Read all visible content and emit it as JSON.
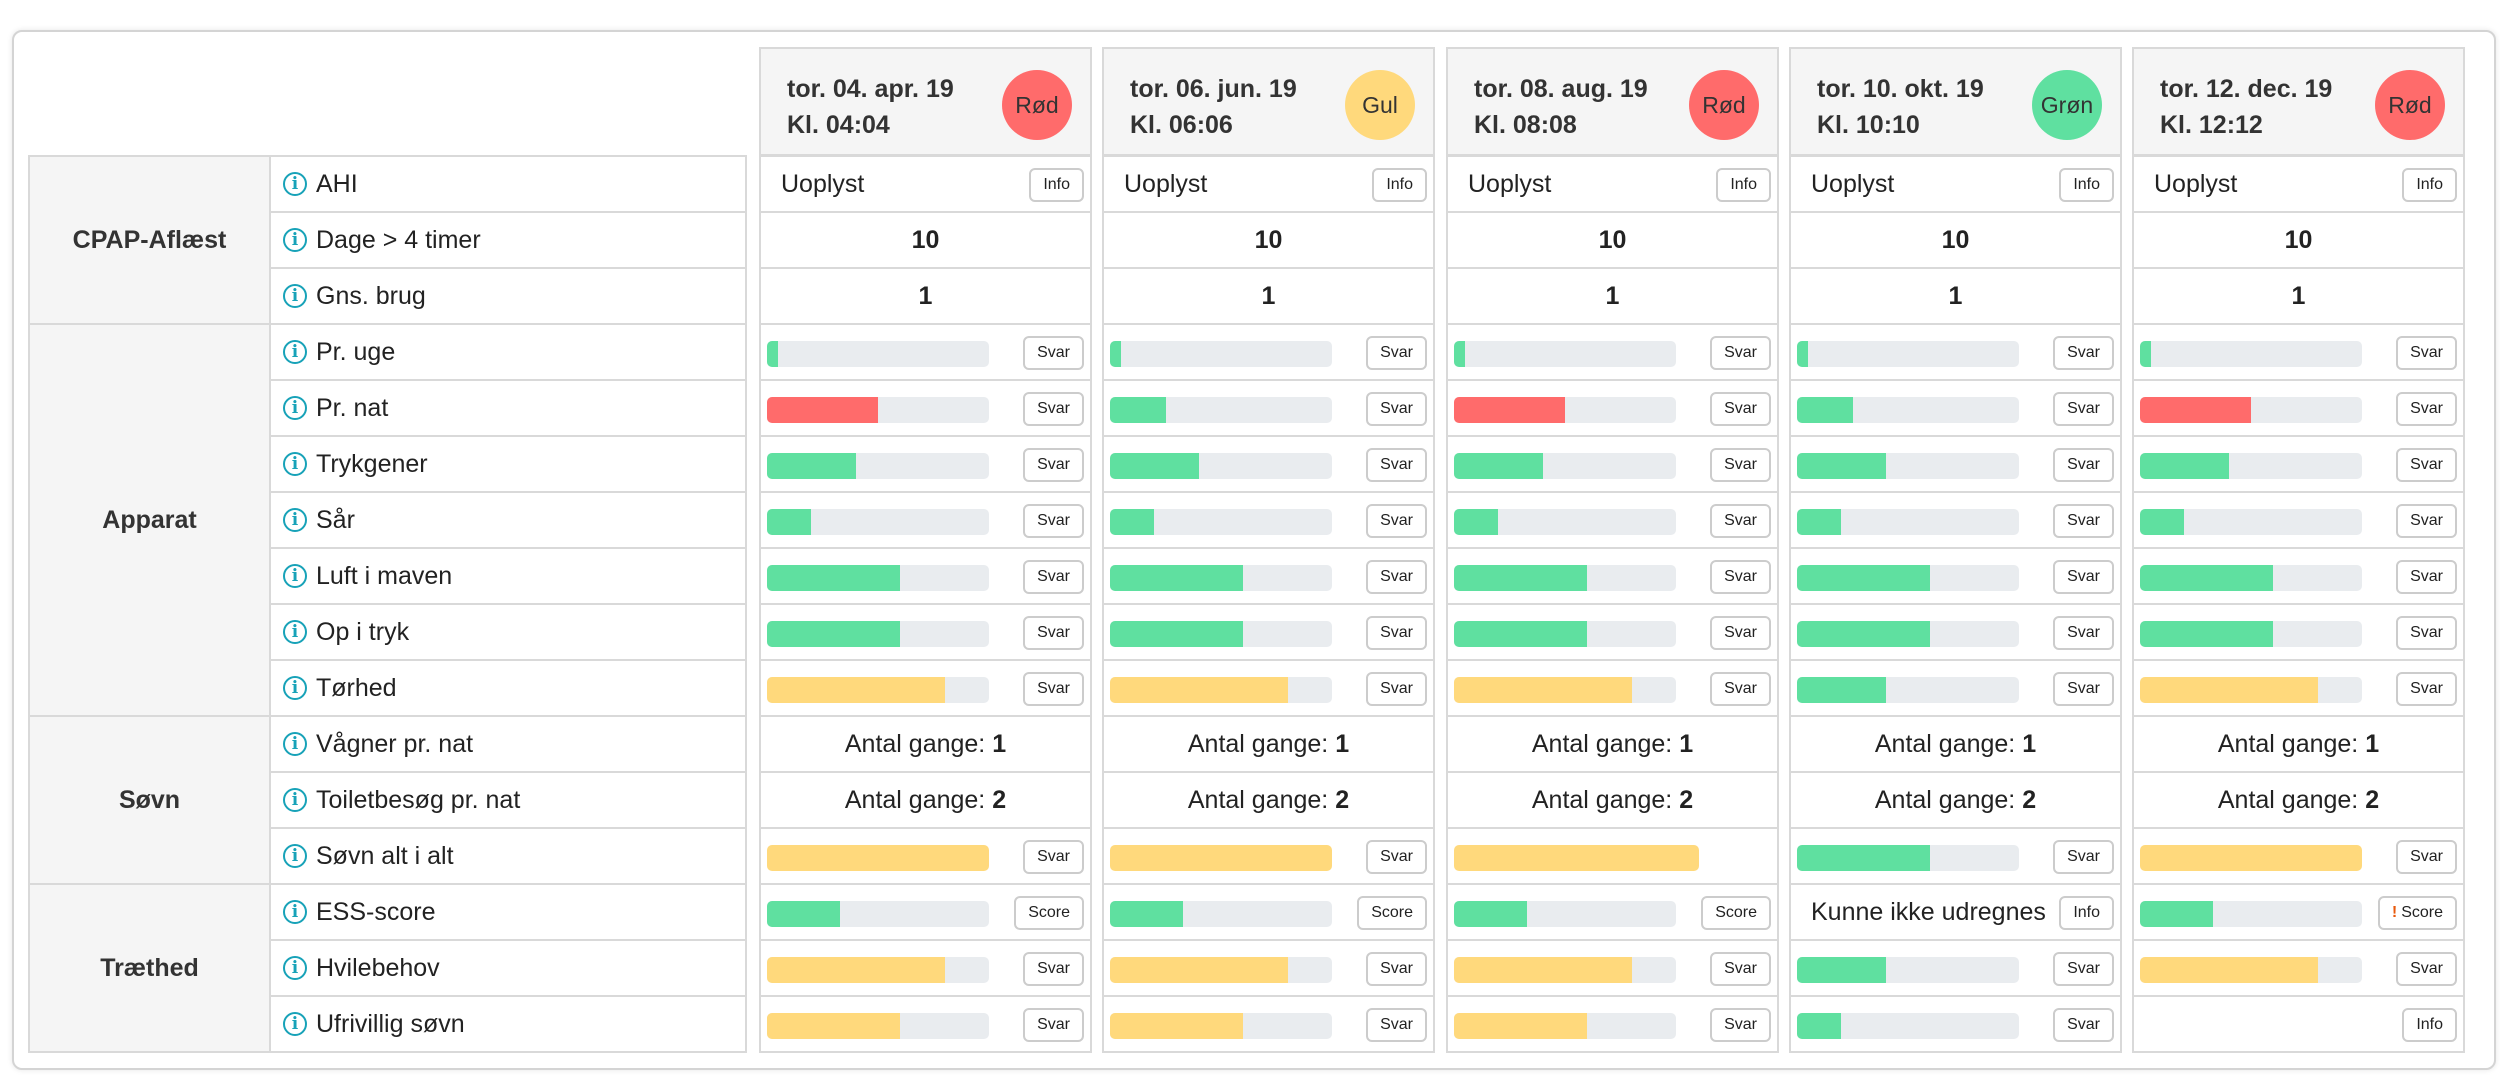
{
  "colors": {
    "red": "#ff6b6b",
    "yellow": "#ffd97c",
    "green": "#5fe0a0",
    "track": "#e9ecef",
    "info_icon": "#17a2b8"
  },
  "sections": [
    {
      "label": "CPAP-Aflæst",
      "rows": [
        "AHI",
        "Dage > 4 timer",
        "Gns. brug"
      ]
    },
    {
      "label": "Apparat",
      "rows": [
        "Pr. uge",
        "Pr. nat",
        "Trykgener",
        "Sår",
        "Luft i maven",
        "Op i tryk",
        "Tørhed"
      ]
    },
    {
      "label": "Søvn",
      "rows": [
        "Vågner pr. nat",
        "Toiletbesøg pr. nat",
        "Søvn alt i alt"
      ]
    },
    {
      "label": "Træthed",
      "rows": [
        "ESS-score",
        "Hvilebehov",
        "Ufrivillig søvn"
      ]
    }
  ],
  "columns": [
    {
      "date": "tor. 04. apr. 19",
      "time": "Kl. 04:04",
      "status": {
        "label": "Rød",
        "color": "red"
      },
      "cells": [
        {
          "type": "text_button",
          "text": "Uoplyst",
          "button": "Info"
        },
        {
          "type": "value",
          "value": "10"
        },
        {
          "type": "value",
          "value": "1"
        },
        {
          "type": "bar",
          "level": 0.05,
          "color": "green",
          "button": "Svar"
        },
        {
          "type": "bar",
          "level": 0.5,
          "color": "red",
          "button": "Svar"
        },
        {
          "type": "bar",
          "level": 0.4,
          "color": "green",
          "button": "Svar"
        },
        {
          "type": "bar",
          "level": 0.2,
          "color": "green",
          "button": "Svar"
        },
        {
          "type": "bar",
          "level": 0.6,
          "color": "green",
          "button": "Svar"
        },
        {
          "type": "bar",
          "level": 0.6,
          "color": "green",
          "button": "Svar"
        },
        {
          "type": "bar",
          "level": 0.8,
          "color": "yellow",
          "button": "Svar"
        },
        {
          "type": "count",
          "prefix": "Antal gange:",
          "value": "1"
        },
        {
          "type": "count",
          "prefix": "Antal gange:",
          "value": "2"
        },
        {
          "type": "bar",
          "level": 1.0,
          "color": "yellow",
          "button": "Svar"
        },
        {
          "type": "bar",
          "level": 0.33,
          "color": "green",
          "button": "Score"
        },
        {
          "type": "bar",
          "level": 0.8,
          "color": "yellow",
          "button": "Svar"
        },
        {
          "type": "bar",
          "level": 0.6,
          "color": "yellow",
          "button": "Svar"
        }
      ]
    },
    {
      "date": "tor. 06. jun. 19",
      "time": "Kl. 06:06",
      "status": {
        "label": "Gul",
        "color": "yellow"
      },
      "cells": [
        {
          "type": "text_button",
          "text": "Uoplyst",
          "button": "Info"
        },
        {
          "type": "value",
          "value": "10"
        },
        {
          "type": "value",
          "value": "1"
        },
        {
          "type": "bar",
          "level": 0.05,
          "color": "green",
          "button": "Svar"
        },
        {
          "type": "bar",
          "level": 0.25,
          "color": "green",
          "button": "Svar"
        },
        {
          "type": "bar",
          "level": 0.4,
          "color": "green",
          "button": "Svar"
        },
        {
          "type": "bar",
          "level": 0.2,
          "color": "green",
          "button": "Svar"
        },
        {
          "type": "bar",
          "level": 0.6,
          "color": "green",
          "button": "Svar"
        },
        {
          "type": "bar",
          "level": 0.6,
          "color": "green",
          "button": "Svar"
        },
        {
          "type": "bar",
          "level": 0.8,
          "color": "yellow",
          "button": "Svar"
        },
        {
          "type": "count",
          "prefix": "Antal gange:",
          "value": "1"
        },
        {
          "type": "count",
          "prefix": "Antal gange:",
          "value": "2"
        },
        {
          "type": "bar",
          "level": 1.0,
          "color": "yellow",
          "button": "Svar"
        },
        {
          "type": "bar",
          "level": 0.33,
          "color": "green",
          "button": "Score"
        },
        {
          "type": "bar",
          "level": 0.8,
          "color": "yellow",
          "button": "Svar"
        },
        {
          "type": "bar",
          "level": 0.6,
          "color": "yellow",
          "button": "Svar"
        }
      ]
    },
    {
      "date": "tor. 08. aug. 19",
      "time": "Kl. 08:08",
      "status": {
        "label": "Rød",
        "color": "red"
      },
      "cells": [
        {
          "type": "text_button",
          "text": "Uoplyst",
          "button": "Info"
        },
        {
          "type": "value",
          "value": "10"
        },
        {
          "type": "value",
          "value": "1"
        },
        {
          "type": "bar",
          "level": 0.05,
          "color": "green",
          "button": "Svar"
        },
        {
          "type": "bar",
          "level": 0.5,
          "color": "red",
          "button": "Svar"
        },
        {
          "type": "bar",
          "level": 0.4,
          "color": "green",
          "button": "Svar"
        },
        {
          "type": "bar",
          "level": 0.2,
          "color": "green",
          "button": "Svar"
        },
        {
          "type": "bar",
          "level": 0.6,
          "color": "green",
          "button": "Svar"
        },
        {
          "type": "bar",
          "level": 0.6,
          "color": "green",
          "button": "Svar"
        },
        {
          "type": "bar",
          "level": 0.8,
          "color": "yellow",
          "button": "Svar"
        },
        {
          "type": "count",
          "prefix": "Antal gange:",
          "value": "1"
        },
        {
          "type": "count",
          "prefix": "Antal gange:",
          "value": "2"
        },
        {
          "type": "bar",
          "level": 1.0,
          "color": "yellow",
          "wide": true
        },
        {
          "type": "bar",
          "level": 0.33,
          "color": "green",
          "button": "Score"
        },
        {
          "type": "bar",
          "level": 0.8,
          "color": "yellow",
          "button": "Svar"
        },
        {
          "type": "bar",
          "level": 0.6,
          "color": "yellow",
          "button": "Svar"
        }
      ]
    },
    {
      "date": "tor. 10. okt. 19",
      "time": "Kl. 10:10",
      "status": {
        "label": "Grøn",
        "color": "green"
      },
      "cells": [
        {
          "type": "text_button",
          "text": "Uoplyst",
          "button": "Info"
        },
        {
          "type": "value",
          "value": "10"
        },
        {
          "type": "value",
          "value": "1"
        },
        {
          "type": "bar",
          "level": 0.05,
          "color": "green",
          "button": "Svar"
        },
        {
          "type": "bar",
          "level": 0.25,
          "color": "green",
          "button": "Svar"
        },
        {
          "type": "bar",
          "level": 0.4,
          "color": "green",
          "button": "Svar"
        },
        {
          "type": "bar",
          "level": 0.2,
          "color": "green",
          "button": "Svar"
        },
        {
          "type": "bar",
          "level": 0.6,
          "color": "green",
          "button": "Svar"
        },
        {
          "type": "bar",
          "level": 0.6,
          "color": "green",
          "button": "Svar"
        },
        {
          "type": "bar",
          "level": 0.4,
          "color": "green",
          "button": "Svar"
        },
        {
          "type": "count",
          "prefix": "Antal gange:",
          "value": "1"
        },
        {
          "type": "count",
          "prefix": "Antal gange:",
          "value": "2"
        },
        {
          "type": "bar",
          "level": 0.6,
          "color": "green",
          "button": "Svar"
        },
        {
          "type": "text_button",
          "text": "Kunne ikke udregnes",
          "button": "Info"
        },
        {
          "type": "bar",
          "level": 0.4,
          "color": "green",
          "button": "Svar"
        },
        {
          "type": "bar",
          "level": 0.2,
          "color": "green",
          "button": "Svar"
        }
      ]
    },
    {
      "date": "tor. 12. dec. 19",
      "time": "Kl. 12:12",
      "status": {
        "label": "Rød",
        "color": "red"
      },
      "cells": [
        {
          "type": "text_button",
          "text": "Uoplyst",
          "button": "Info"
        },
        {
          "type": "value",
          "value": "10"
        },
        {
          "type": "value",
          "value": "1"
        },
        {
          "type": "bar",
          "level": 0.05,
          "color": "green",
          "button": "Svar"
        },
        {
          "type": "bar",
          "level": 0.5,
          "color": "red",
          "button": "Svar"
        },
        {
          "type": "bar",
          "level": 0.4,
          "color": "green",
          "button": "Svar"
        },
        {
          "type": "bar",
          "level": 0.2,
          "color": "green",
          "button": "Svar"
        },
        {
          "type": "bar",
          "level": 0.6,
          "color": "green",
          "button": "Svar"
        },
        {
          "type": "bar",
          "level": 0.6,
          "color": "green",
          "button": "Svar"
        },
        {
          "type": "bar",
          "level": 0.8,
          "color": "yellow",
          "button": "Svar"
        },
        {
          "type": "count",
          "prefix": "Antal gange:",
          "value": "1"
        },
        {
          "type": "count",
          "prefix": "Antal gange:",
          "value": "2"
        },
        {
          "type": "bar",
          "level": 1.0,
          "color": "yellow",
          "button": "Svar"
        },
        {
          "type": "bar",
          "level": 0.33,
          "color": "green",
          "button": "Score",
          "warning": "!"
        },
        {
          "type": "bar",
          "level": 0.8,
          "color": "yellow",
          "button": "Svar"
        },
        {
          "type": "button_only",
          "button": "Info"
        }
      ]
    }
  ]
}
